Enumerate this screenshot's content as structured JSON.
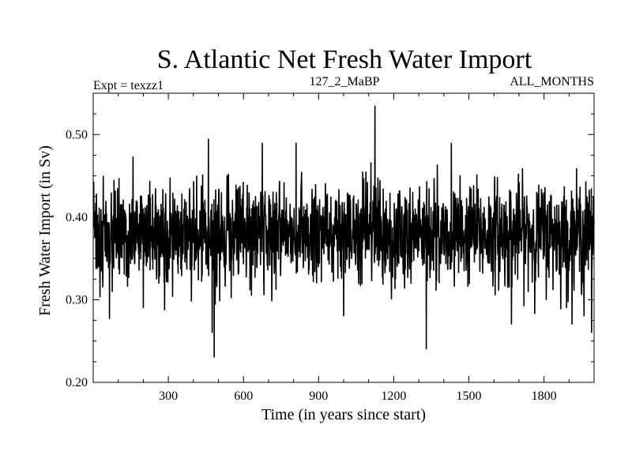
{
  "chart_data": {
    "type": "line",
    "title": "S. Atlantic Net Fresh Water Import",
    "subtitle_left": "Expt = texzz1",
    "subtitle_center": "127_2_MaBP",
    "subtitle_right": "ALL_MONTHS",
    "xlabel": "Time (in years since start)",
    "ylabel": "Fresh Water Import (in Sv)",
    "xlim": [
      0,
      2000
    ],
    "ylim": [
      0.2,
      0.55
    ],
    "xticks": [
      300,
      600,
      900,
      1200,
      1500,
      1800
    ],
    "xtick_labels": [
      "300",
      "600",
      "900",
      "1200",
      "1500",
      "1800"
    ],
    "yticks": [
      0.2,
      0.3,
      0.4,
      0.5
    ],
    "ytick_labels": [
      "0.20",
      "0.30",
      "0.40",
      "0.50"
    ],
    "series": [
      {
        "name": "Net Fresh Water Import",
        "n_points": 2000,
        "mean": 0.38,
        "std": 0.03,
        "seed": 127,
        "x_start": 1,
        "x_step": 1,
        "notable_points": [
          {
            "x": 40,
            "y": 0.45
          },
          {
            "x": 200,
            "y": 0.29
          },
          {
            "x": 460,
            "y": 0.495
          },
          {
            "x": 483,
            "y": 0.23
          },
          {
            "x": 475,
            "y": 0.26
          },
          {
            "x": 675,
            "y": 0.49
          },
          {
            "x": 810,
            "y": 0.49
          },
          {
            "x": 1000,
            "y": 0.28
          },
          {
            "x": 1125,
            "y": 0.535
          },
          {
            "x": 1330,
            "y": 0.24
          },
          {
            "x": 1430,
            "y": 0.49
          },
          {
            "x": 1670,
            "y": 0.27
          },
          {
            "x": 1890,
            "y": 0.29
          },
          {
            "x": 1960,
            "y": 0.28
          },
          {
            "x": 1990,
            "y": 0.26
          }
        ]
      }
    ]
  }
}
